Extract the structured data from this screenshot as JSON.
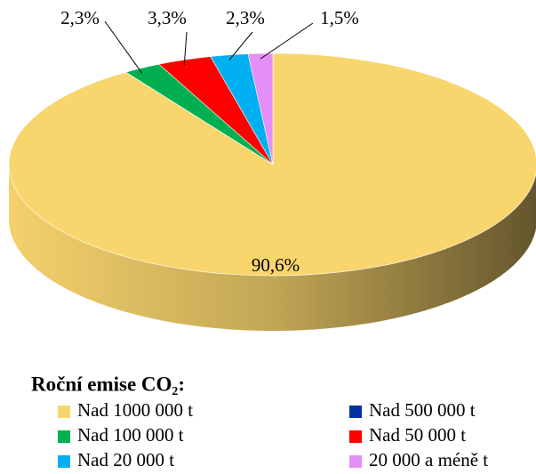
{
  "chart_data": {
    "type": "pie",
    "legend_title": "Roční emise CO₂:",
    "categories": [
      "Nad 1000 000 t",
      "Nad 500 000 t",
      "Nad 100 000 t",
      "Nad 50 000 t",
      "Nad 20 000 t",
      "20 000 a méně t"
    ],
    "values": [
      90.6,
      0,
      2.3,
      3.3,
      2.3,
      1.5
    ],
    "value_labels": [
      "90,6%",
      null,
      "2,3%",
      "3,3%",
      "2,3%",
      "1,5%"
    ],
    "colors": [
      "#f9d56e",
      "#0033a0",
      "#00b050",
      "#ff0000",
      "#00b0f0",
      "#e48ff5"
    ],
    "start_angle": 0,
    "direction": "clockwise",
    "legend_position": "bottom"
  }
}
